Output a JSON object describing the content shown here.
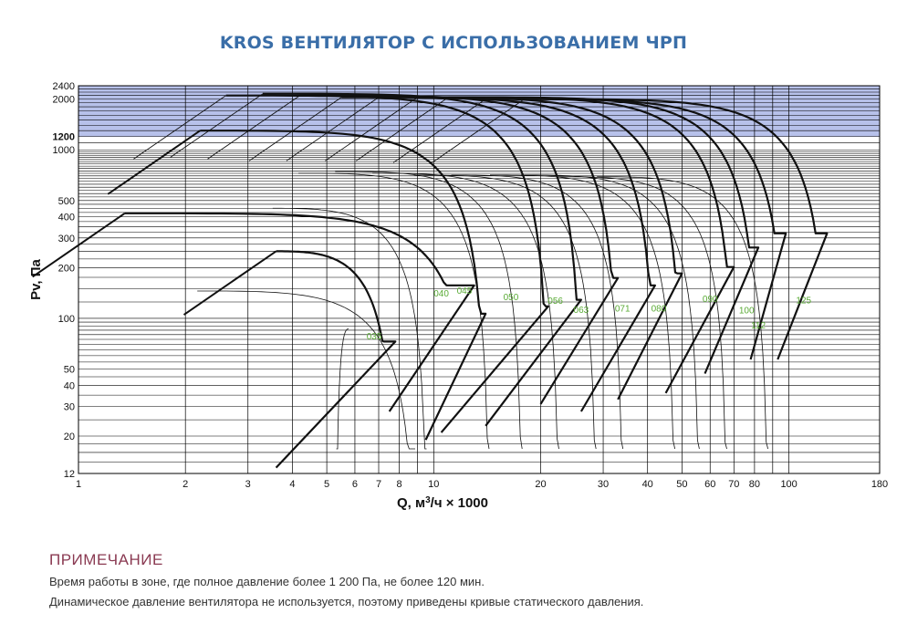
{
  "title": "KROS ВЕНТИЛЯТОР С ИСПОЛЬЗОВАНИЕМ ЧРП",
  "note": {
    "heading": "ПРИМЕЧАНИЕ",
    "lines": [
      "Время работы в зоне, где полное давление более 1 200 Па, не более 120 мин.",
      "Динамическое давление вентилятора не используется, поэтому приведены кривые статического давления."
    ]
  },
  "colors": {
    "title": "#3a6ea8",
    "band": "#b7c1ea",
    "curve": "#111111",
    "size_label": "#5aab36",
    "note_heading": "#8a3a52"
  },
  "chart_data": {
    "type": "line",
    "title": "KROS ВЕНТИЛЯТОР С ИСПОЛЬЗОВАНИЕМ ЧРП",
    "xlabel": "Q, м³/ч × 1000",
    "ylabel": "Pv, Па",
    "x_scale": "log",
    "y_scale": "log",
    "xlim": [
      1,
      180
    ],
    "ylim": [
      12,
      2400
    ],
    "x_ticks": [
      1,
      2,
      3,
      4,
      5,
      6,
      7,
      8,
      10,
      20,
      30,
      40,
      50,
      60,
      70,
      80,
      100,
      180
    ],
    "y_ticks": [
      12,
      20,
      30,
      40,
      50,
      100,
      200,
      300,
      400,
      500,
      1000,
      1200,
      2000,
      2400
    ],
    "y_ticks_bold": [
      1200
    ],
    "grid": true,
    "shaded_band": {
      "from": 1200,
      "to": 2400
    },
    "series": [
      {
        "name": "035",
        "pmax": 250,
        "qmax": 3.6,
        "qfree": 7.8,
        "qlow": 3.6,
        "plow": 13,
        "label_q": 6.8,
        "label_p": 75
      },
      {
        "name": "040",
        "pmax": 420,
        "qmax": 1.35,
        "qfree": 13,
        "qlow": 7.5,
        "plow": 28,
        "label_q": 10.5,
        "label_p": 135
      },
      {
        "name": "045",
        "pmax": 1300,
        "qmax": 2.2,
        "qfree": 14,
        "qlow": 9.5,
        "plow": 19,
        "label_q": 12.2,
        "label_p": 140
      },
      {
        "name": "050",
        "pmax": 2100,
        "qmax": 2.6,
        "qfree": 21,
        "qlow": 10.5,
        "plow": 21,
        "label_q": 16.5,
        "label_p": 128
      },
      {
        "name": "056",
        "pmax": 2150,
        "qmax": 3.3,
        "qfree": 26,
        "qlow": 14,
        "plow": 23,
        "label_q": 22,
        "label_p": 122
      },
      {
        "name": "063",
        "pmax": 2100,
        "qmax": 4.2,
        "qfree": 33,
        "qlow": 20,
        "plow": 31,
        "label_q": 26,
        "label_p": 108
      },
      {
        "name": "071",
        "pmax": 2050,
        "qmax": 5.5,
        "qfree": 42,
        "qlow": 26,
        "plow": 28,
        "label_q": 34,
        "label_p": 110
      },
      {
        "name": "080",
        "pmax": 2050,
        "qmax": 7,
        "qfree": 50,
        "qlow": 33,
        "plow": 33,
        "label_q": 43,
        "label_p": 110
      },
      {
        "name": "090",
        "pmax": 2050,
        "qmax": 9,
        "qfree": 70,
        "qlow": 45,
        "plow": 36,
        "label_q": 60,
        "label_p": 125
      },
      {
        "name": "100",
        "pmax": 2050,
        "qmax": 11,
        "qfree": 82,
        "qlow": 58,
        "plow": 47,
        "label_q": 76,
        "label_p": 107
      },
      {
        "name": "112",
        "pmax": 2000,
        "qmax": 14,
        "qfree": 98,
        "qlow": 78,
        "plow": 57,
        "label_q": 82,
        "label_p": 87
      },
      {
        "name": "125",
        "pmax": 2000,
        "qmax": 18,
        "qfree": 128,
        "qlow": 93,
        "plow": 57,
        "label_q": 110,
        "label_p": 123
      }
    ]
  }
}
